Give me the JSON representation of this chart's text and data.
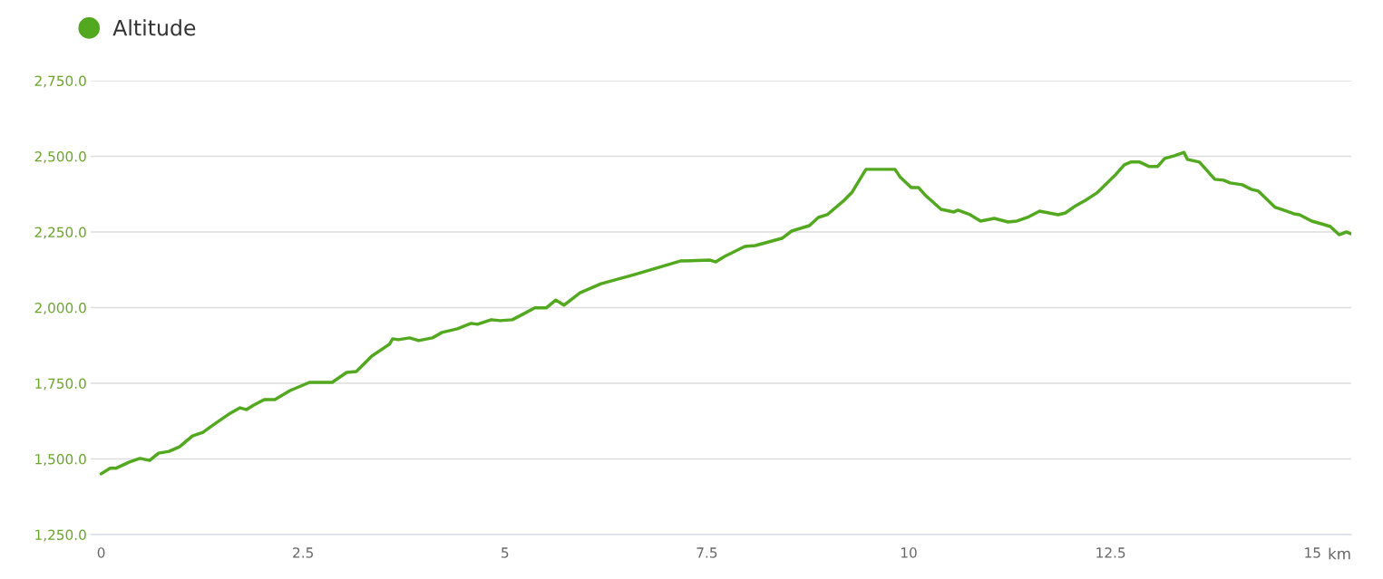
{
  "chart_data": {
    "type": "line",
    "xlabel": "km",
    "x": [
      0,
      0.11,
      0.18,
      0.35,
      0.48,
      0.6,
      0.71,
      0.84,
      0.97,
      1.13,
      1.26,
      1.4,
      1.58,
      1.72,
      1.8,
      1.89,
      2.02,
      2.15,
      2.34,
      2.58,
      2.86,
      3.04,
      3.16,
      3.35,
      3.57,
      3.61,
      3.68,
      3.82,
      3.93,
      4.1,
      4.22,
      4.41,
      4.58,
      4.66,
      4.83,
      4.94,
      5.09,
      5.22,
      5.37,
      5.51,
      5.63,
      5.73,
      5.93,
      6.19,
      6.6,
      7.17,
      7.54,
      7.61,
      7.72,
      7.97,
      8.1,
      8.43,
      8.55,
      8.77,
      8.88,
      8.99,
      9.19,
      9.3,
      9.47,
      9.83,
      9.89,
      10.03,
      10.12,
      10.2,
      10.4,
      10.56,
      10.61,
      10.76,
      10.89,
      11.06,
      11.23,
      11.34,
      11.47,
      11.62,
      11.85,
      11.94,
      12.07,
      12.19,
      12.33,
      12.56,
      12.67,
      12.75,
      12.86,
      12.98,
      13.08,
      13.17,
      13.29,
      13.41,
      13.45,
      13.6,
      13.79,
      13.9,
      13.98,
      14.13,
      14.24,
      14.33,
      14.54,
      14.61,
      14.77,
      14.84,
      14.99,
      15.11,
      15.22,
      15.33,
      15.42,
      15.48
    ],
    "series": [
      {
        "name": "Altitude",
        "color": "#52a81e",
        "values": [
          1451,
          1469,
          1469,
          1490,
          1502,
          1495,
          1519,
          1525,
          1540,
          1576,
          1588,
          1615,
          1648,
          1669,
          1663,
          1678,
          1696,
          1696,
          1726,
          1753,
          1753,
          1786,
          1789,
          1840,
          1879,
          1897,
          1894,
          1900,
          1891,
          1900,
          1918,
          1930,
          1948,
          1945,
          1960,
          1957,
          1960,
          1978,
          1999,
          1999,
          2025,
          2008,
          2049,
          2079,
          2109,
          2154,
          2157,
          2151,
          2169,
          2202,
          2205,
          2229,
          2253,
          2271,
          2298,
          2307,
          2352,
          2382,
          2457,
          2457,
          2433,
          2397,
          2397,
          2373,
          2325,
          2316,
          2322,
          2307,
          2286,
          2295,
          2283,
          2286,
          2298,
          2319,
          2307,
          2313,
          2337,
          2355,
          2379,
          2439,
          2472,
          2481,
          2481,
          2466,
          2466,
          2493,
          2502,
          2513,
          2490,
          2481,
          2424,
          2421,
          2412,
          2406,
          2391,
          2385,
          2331,
          2325,
          2310,
          2307,
          2286,
          2277,
          2268,
          2241,
          2250,
          2244
        ]
      }
    ],
    "xlim": [
      -0.13,
      15.48
    ],
    "ylim": [
      1250,
      2750
    ],
    "xticks": [
      0,
      2.5,
      5,
      7.5,
      10,
      12.5,
      15
    ],
    "yticks": [
      {
        "value": 1250,
        "label": "1,250.0"
      },
      {
        "value": 1500,
        "label": "1,500.0"
      },
      {
        "value": 1750,
        "label": "1,750.0"
      },
      {
        "value": 2000,
        "label": "2,000.0"
      },
      {
        "value": 2250,
        "label": "2,250.0"
      },
      {
        "value": 2500,
        "label": "2,500.0"
      },
      {
        "value": 2750,
        "label": "2,750.0"
      }
    ],
    "grid": "y",
    "legend": "top left",
    "marker": "none",
    "line_style": "solid"
  }
}
